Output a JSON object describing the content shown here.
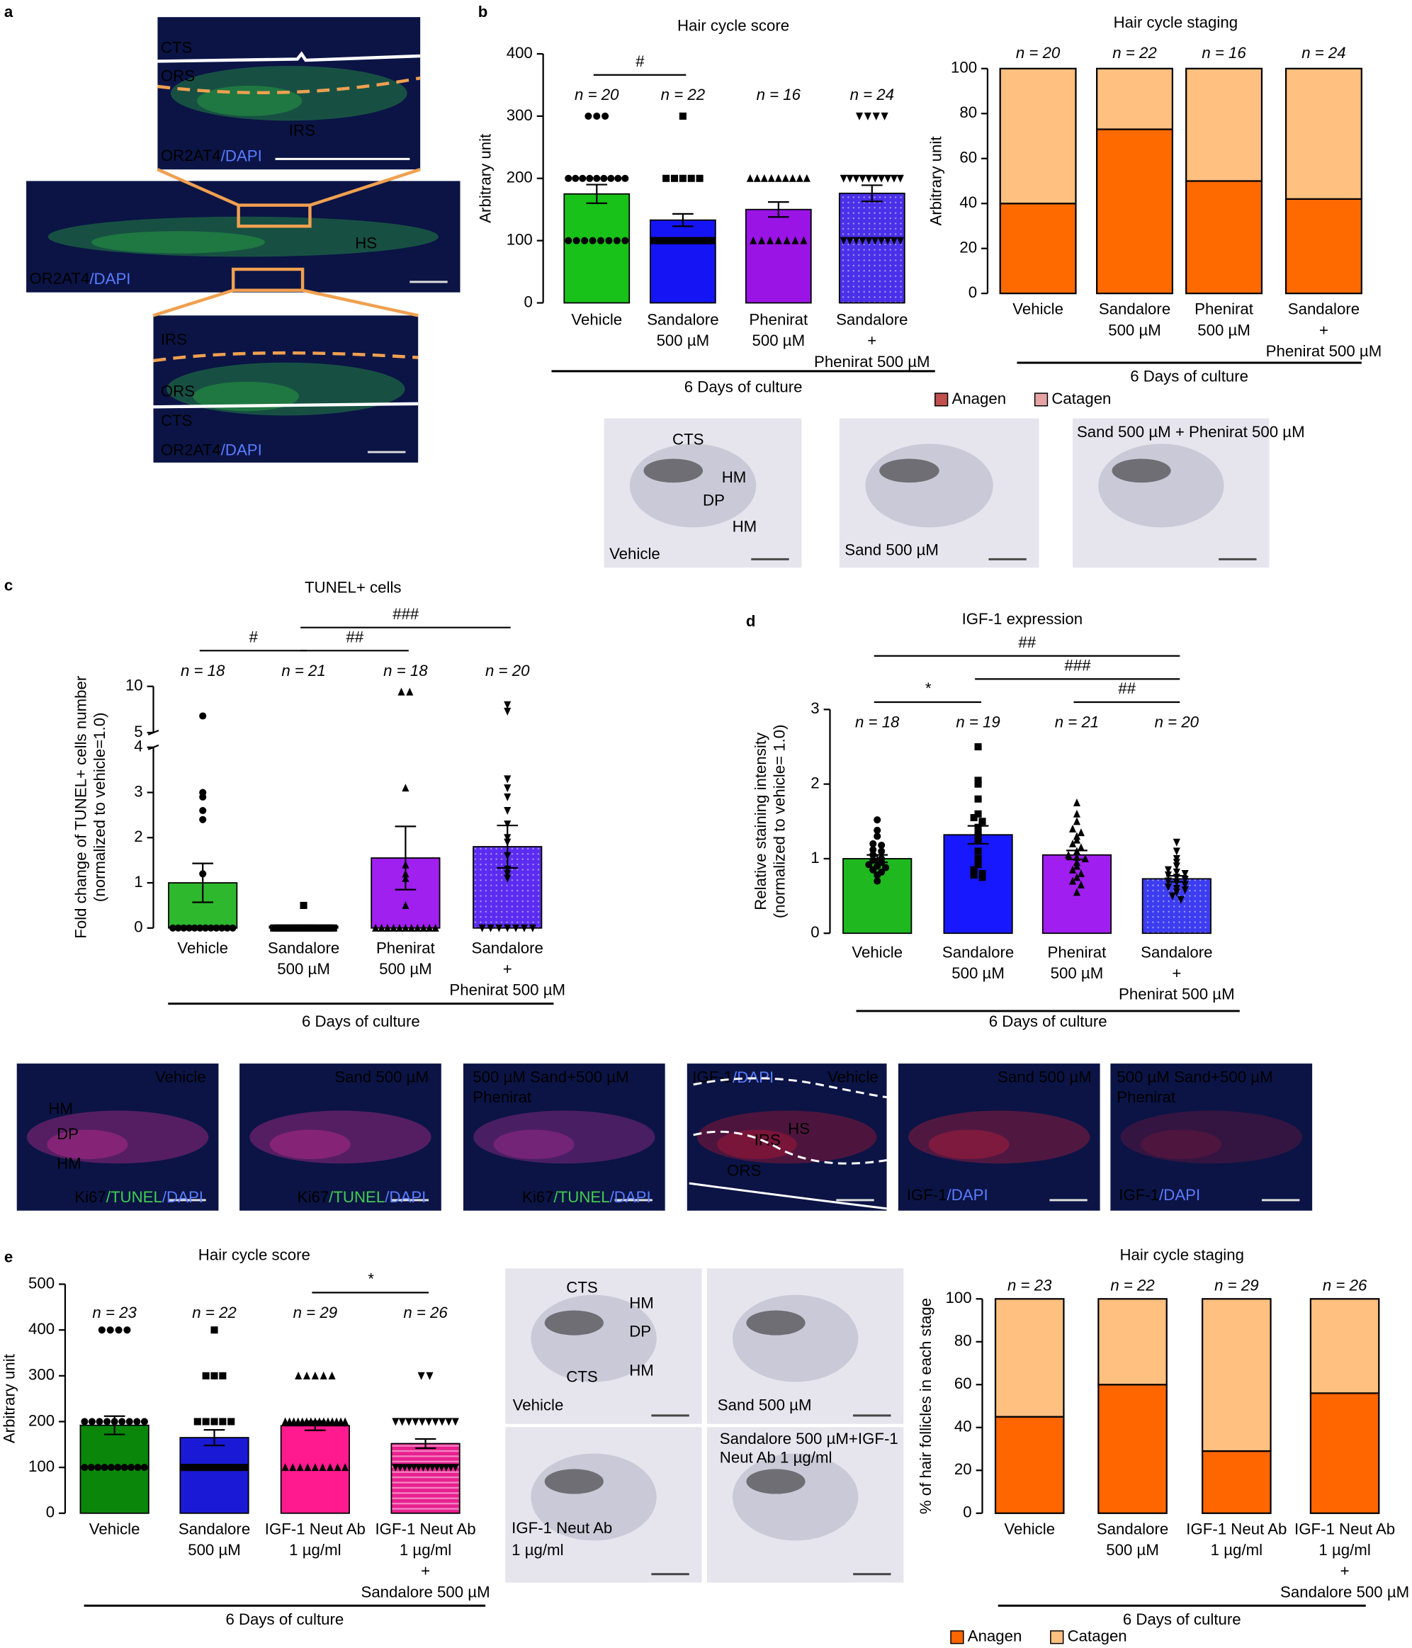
{
  "panels": [
    "a",
    "b",
    "c",
    "d",
    "e"
  ],
  "images": [
    {
      "labels": [
        "CTS",
        "ORS",
        "IRS",
        "OR2AT4",
        "/DAPI"
      ]
    },
    {
      "labels": [
        "OR2AT4",
        "/DAPI",
        "HS"
      ]
    },
    {
      "labels": [
        "IRS",
        "ORS",
        "CTS",
        "OR2AT4",
        "/DAPI"
      ]
    },
    {
      "labels": [
        "CTS",
        "HM",
        "DP",
        "HM",
        "Vehicle"
      ]
    },
    {
      "labels": [
        "Sand 500 µM"
      ]
    },
    {
      "labels": [
        "Sand 500 µM + Phenirat 500 µM"
      ]
    },
    {
      "labels": [
        "Vehicle",
        "HM",
        "DP",
        "HM",
        "Ki67",
        "/TUNEL",
        "/DAPI"
      ]
    },
    {
      "labels": [
        "Sand 500 µM",
        "Ki67",
        "/TUNEL",
        "/DAPI"
      ]
    },
    {
      "labels": [
        "500 µM Sand+500 µM",
        "Phenirat",
        "Ki67",
        "/TUNEL",
        "/DAPI"
      ]
    },
    {
      "labels": [
        "IGF-1",
        "/DAPI",
        "Vehicle",
        "HS",
        "IRS",
        "ORS"
      ]
    },
    {
      "labels": [
        "Sand 500 µM",
        "IGF-1",
        "/DAPI"
      ]
    },
    {
      "labels": [
        "500 µM Sand+500 µM",
        "Phenirat",
        "IGF-1",
        "/DAPI"
      ]
    },
    {
      "labels": [
        "CTS",
        "HM",
        "DP",
        "CTS",
        "HM",
        "Vehicle"
      ]
    },
    {
      "labels": [
        "Sand 500 µM"
      ]
    },
    {
      "labels": [
        "IGF-1 Neut Ab",
        "1 µg/ml"
      ]
    },
    {
      "labels": [
        "Sandalore 500 µM+IGF-1",
        "Neut Ab 1 µg/ml"
      ]
    }
  ],
  "chart_data": [
    {
      "type": "bar",
      "title": "Hair cycle score",
      "ylabel": [
        "Arbitrary unit"
      ],
      "categories": [
        [
          "Vehicle"
        ],
        [
          "Sandalore",
          "500 µM"
        ],
        [
          "Phenirat",
          "500 µM"
        ],
        [
          "Sandalore",
          "+",
          "Phenirat 500 µM"
        ]
      ],
      "values": [
        175,
        133,
        150,
        176
      ],
      "errors": [
        15,
        10,
        12,
        13
      ],
      "colors": [
        "#19c219",
        "#1414f5",
        "#9a14e6",
        "#4a30e8"
      ],
      "fill_styles": [
        "solid",
        "solid",
        "solid",
        "dots"
      ],
      "markers": [
        "circle",
        "square",
        "triangle",
        "triangle-down"
      ],
      "points": [
        [
          300,
          300,
          300,
          200,
          200,
          200,
          200,
          200,
          200,
          200,
          200,
          200,
          100,
          100,
          100,
          100,
          100,
          100,
          100,
          100
        ],
        [
          300,
          200,
          200,
          200,
          200,
          200,
          100,
          100,
          100,
          100,
          100,
          100,
          100,
          100,
          100,
          100,
          100,
          100,
          100,
          100,
          100,
          100
        ],
        [
          200,
          200,
          200,
          200,
          200,
          200,
          200,
          200,
          200,
          100,
          100,
          100,
          100,
          100,
          100,
          100
        ],
        [
          300,
          300,
          300,
          300,
          200,
          200,
          200,
          200,
          200,
          200,
          200,
          200,
          200,
          200,
          100,
          100,
          100,
          100,
          100,
          100,
          100,
          100,
          100,
          100
        ]
      ],
      "n_labels": [
        "n = 20",
        "n = 22",
        "n = 16",
        "n = 24"
      ],
      "significance": [
        {
          "label": "#",
          "from": 0,
          "to": 1
        }
      ],
      "group_label": "6 Days of culture",
      "ylim": [
        0,
        400
      ],
      "yticks": [
        0,
        100,
        200,
        300,
        400
      ]
    },
    {
      "type": "stacked_bar",
      "title": "Hair cycle staging",
      "ylabel": [
        "Arbitrary unit"
      ],
      "categories": [
        [
          "Vehicle"
        ],
        [
          "Sandalore",
          "500 µM"
        ],
        [
          "Phenirat",
          "500 µM"
        ],
        [
          "Sandalore",
          "+",
          "Phenirat 500 µM"
        ]
      ],
      "series": [
        {
          "name": "Anagen",
          "color": "#ff6a00",
          "legend_color": "#c0504d",
          "values": [
            40,
            73,
            50,
            42
          ]
        },
        {
          "name": "Catagen",
          "color": "#ffc080",
          "legend_color": "#e6a3a3",
          "values": [
            60,
            27,
            50,
            58
          ]
        }
      ],
      "n_labels": [
        "n = 20",
        "n = 22",
        "n = 16",
        "n = 24"
      ],
      "group_label": "6 Days of culture",
      "ylim": [
        0,
        100
      ],
      "yticks": [
        0,
        20,
        40,
        60,
        80,
        100
      ]
    },
    {
      "type": "bar",
      "title": "TUNEL+ cells",
      "ylabel": [
        "Fold change of TUNEL+ cells number",
        "(normalized to vehicle=1.0)"
      ],
      "categories": [
        [
          "Vehicle"
        ],
        [
          "Sandalore",
          "500 µM"
        ],
        [
          "Phenirat",
          "500 µM"
        ],
        [
          "Sandalore",
          "+",
          "Phenirat 500 µM"
        ]
      ],
      "values": [
        1.0,
        0.04,
        1.55,
        1.8
      ],
      "errors": [
        0.43,
        0.02,
        0.7,
        0.47
      ],
      "colors": [
        "#2eb82e",
        "#000000",
        "#a020f0",
        "#5b2cf0"
      ],
      "fill_styles": [
        "solid",
        "solid",
        "solid",
        "dots"
      ],
      "markers": [
        "circle",
        "square",
        "triangle",
        "triangle-down"
      ],
      "points": [
        [
          6.8,
          3.0,
          2.9,
          2.6,
          2.4,
          1.2,
          0,
          0,
          0,
          0,
          0,
          0,
          0,
          0,
          0,
          0,
          0,
          0
        ],
        [
          0.5,
          0,
          0,
          0,
          0,
          0,
          0,
          0,
          0,
          0,
          0,
          0,
          0,
          0,
          0,
          0,
          0,
          0,
          0,
          0,
          0
        ],
        [
          9.4,
          9.4,
          3.1,
          1.4,
          1.2,
          1.1,
          0.5,
          0,
          0,
          0,
          0,
          0,
          0,
          0,
          0,
          0,
          0,
          0
        ],
        [
          8.0,
          7.3,
          3.3,
          3.1,
          2.9,
          2.6,
          2.3,
          2.0,
          1.9,
          1.6,
          1.3,
          1.2,
          1.1,
          0,
          0,
          0,
          0,
          0,
          0,
          0
        ]
      ],
      "n_labels": [
        "n = 18",
        "n = 21",
        "n = 18",
        "n = 20"
      ],
      "significance": [
        {
          "label": "#",
          "from": 0,
          "to": 1
        },
        {
          "label": "##",
          "from": 1,
          "to": 2
        },
        {
          "label": "###",
          "from": 1,
          "to": 3
        }
      ],
      "group_label": "6 Days of culture",
      "ylim_lower": [
        0,
        4
      ],
      "ylim_upper": [
        5,
        10
      ],
      "yticks": [
        0,
        1,
        2,
        3,
        4,
        5,
        10
      ]
    },
    {
      "type": "bar",
      "title": "IGF-1 expression",
      "ylabel": [
        "Relative staining intensity",
        "(normalized to vehicle= 1.0)"
      ],
      "categories": [
        [
          "Vehicle"
        ],
        [
          "Sandalore",
          "500 µM"
        ],
        [
          "Phenirat",
          "500 µM"
        ],
        [
          "Sandalore",
          "+",
          "Phenirat 500 µM"
        ]
      ],
      "values": [
        1.0,
        1.32,
        1.05,
        0.73
      ],
      "errors": [
        0.05,
        0.12,
        0.06,
        0.04
      ],
      "colors": [
        "#1fb81f",
        "#1818ff",
        "#a01ff0",
        "#3c3cf0"
      ],
      "fill_styles": [
        "solid",
        "solid",
        "solid",
        "dots"
      ],
      "markers": [
        "circle",
        "square",
        "triangle",
        "triangle-down"
      ],
      "points": [
        [
          1.52,
          1.38,
          1.3,
          1.2,
          1.18,
          1.12,
          1.1,
          1.05,
          1.0,
          0.98,
          0.95,
          0.92,
          0.9,
          0.88,
          0.85,
          0.82,
          0.78,
          0.7
        ],
        [
          2.5,
          2.05,
          2.0,
          1.8,
          1.6,
          1.55,
          1.5,
          1.42,
          1.35,
          1.3,
          1.25,
          1.1,
          1.0,
          0.95,
          0.92,
          0.85,
          0.8,
          0.78,
          0.75
        ],
        [
          1.75,
          1.6,
          1.5,
          1.4,
          1.35,
          1.3,
          1.25,
          1.2,
          1.15,
          1.1,
          1.05,
          1.02,
          1.0,
          0.95,
          0.9,
          0.85,
          0.8,
          0.75,
          0.7,
          0.65,
          0.55
        ],
        [
          1.22,
          1.1,
          1.0,
          0.95,
          0.9,
          0.85,
          0.82,
          0.8,
          0.78,
          0.75,
          0.72,
          0.7,
          0.68,
          0.65,
          0.62,
          0.6,
          0.58,
          0.55,
          0.5,
          0.45
        ]
      ],
      "n_labels": [
        "n = 18",
        "n = 19",
        "n = 21",
        "n = 20"
      ],
      "significance": [
        {
          "label": "*",
          "from": 0,
          "to": 1
        },
        {
          "label": "##",
          "from": 2,
          "to": 3
        },
        {
          "label": "###",
          "from": 1,
          "to": 3
        },
        {
          "label": "##",
          "from": 0,
          "to": 3
        }
      ],
      "group_label": "6 Days of culture",
      "ylim": [
        0,
        3
      ],
      "yticks": [
        0,
        1,
        2,
        3
      ]
    },
    {
      "type": "bar",
      "title": "Hair cycle score",
      "ylabel": [
        "Arbitrary unit"
      ],
      "categories": [
        [
          "Vehicle"
        ],
        [
          "Sandalore",
          "500 µM"
        ],
        [
          "IGF-1 Neut Ab",
          "1 µg/ml"
        ],
        [
          "IGF-1 Neut Ab",
          "1 µg/ml",
          "+",
          "Sandalore 500 µM"
        ]
      ],
      "values": [
        192,
        165,
        191,
        152
      ],
      "errors": [
        20,
        17,
        10,
        10
      ],
      "colors": [
        "#0a870a",
        "#1a1ad6",
        "#ff1a8f",
        "#e8208f"
      ],
      "fill_styles": [
        "solid",
        "solid",
        "solid",
        "stripes"
      ],
      "markers": [
        "circle",
        "square",
        "triangle",
        "triangle-down"
      ],
      "points": [
        [
          400,
          400,
          400,
          400,
          200,
          200,
          200,
          200,
          200,
          200,
          200,
          200,
          200,
          100,
          100,
          100,
          100,
          100,
          100,
          100,
          100,
          100,
          100
        ],
        [
          400,
          300,
          300,
          300,
          200,
          200,
          200,
          200,
          200,
          100,
          100,
          100,
          100,
          100,
          100,
          100,
          100,
          100,
          100,
          100,
          100,
          100
        ],
        [
          300,
          300,
          300,
          300,
          300,
          200,
          200,
          200,
          200,
          200,
          200,
          200,
          200,
          200,
          200,
          200,
          200,
          200,
          200,
          200,
          100,
          100,
          100,
          100,
          100,
          100,
          100,
          100,
          100
        ],
        [
          300,
          300,
          200,
          200,
          200,
          200,
          200,
          200,
          200,
          200,
          200,
          200,
          100,
          100,
          100,
          100,
          100,
          100,
          100,
          100,
          100,
          100,
          100,
          100,
          100,
          100
        ]
      ],
      "n_labels": [
        "n = 23",
        "n = 22",
        "n = 29",
        "n = 26"
      ],
      "significance": [
        {
          "label": "*",
          "from": 2,
          "to": 3
        }
      ],
      "group_label": "6 Days of culture",
      "ylim": [
        0,
        500
      ],
      "yticks": [
        0,
        100,
        200,
        300,
        400,
        500
      ]
    },
    {
      "type": "stacked_bar",
      "title": "Hair cycle staging",
      "ylabel": [
        "% of hair follicles in each stage"
      ],
      "categories": [
        [
          "Vehicle"
        ],
        [
          "Sandalore",
          "500 µM"
        ],
        [
          "IGF-1 Neut Ab",
          "1 µg/ml"
        ],
        [
          "IGF-1 Neut Ab",
          "1 µg/ml",
          "+",
          "Sandalore 500 µM"
        ]
      ],
      "series": [
        {
          "name": "Anagen",
          "color": "#ff6600",
          "values": [
            45,
            60,
            29,
            56
          ]
        },
        {
          "name": "Catagen",
          "color": "#ffc080",
          "values": [
            55,
            40,
            71,
            44
          ]
        }
      ],
      "n_labels": [
        "n = 23",
        "n = 22",
        "n = 29",
        "n = 26"
      ],
      "group_label": "6 Days of culture",
      "ylim": [
        0,
        100
      ],
      "yticks": [
        0,
        20,
        40,
        60,
        80,
        100
      ]
    }
  ]
}
